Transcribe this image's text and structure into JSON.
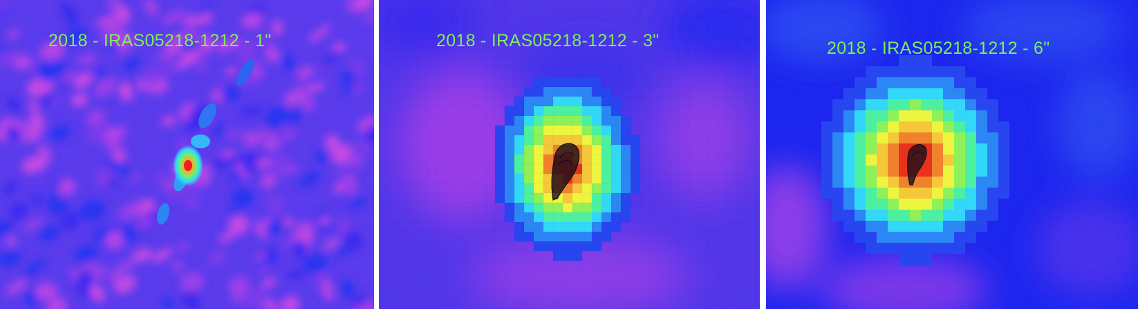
{
  "panels": [
    {
      "label": "2018 - IRAS05218-1212 - 1\"",
      "smoothing": "1\"",
      "colormap": [
        "#1622ee",
        "#6a3ae6",
        "#a03ee8",
        "#2ad7ff",
        "#5bf08a",
        "#f2ee3a",
        "#f3993a",
        "#ee2020"
      ]
    },
    {
      "label": "2018 - IRAS05218-1212 - 3\"",
      "smoothing": "3\""
    },
    {
      "label": "2018 - IRAS05218-1212 - 6\"",
      "smoothing": "6\""
    }
  ]
}
